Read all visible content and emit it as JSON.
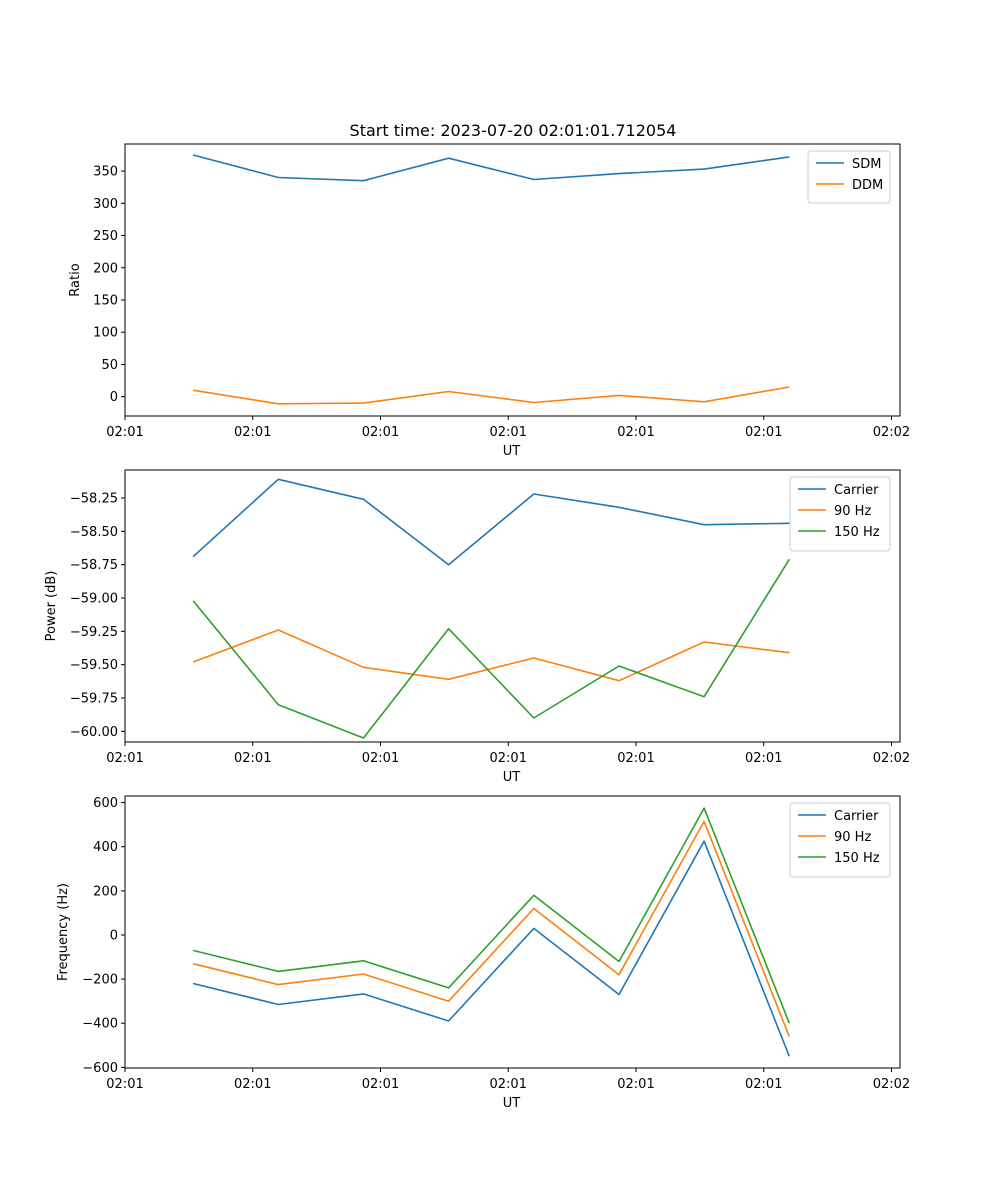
{
  "figure": {
    "title": "Start time: 2023-07-20 02:01:01.712054"
  },
  "chart_data": [
    {
      "type": "line",
      "title": "Start time: 2023-07-20 02:01:01.712054",
      "xlabel": "UT",
      "ylabel": "Ratio",
      "x": [
        1,
        2,
        3,
        4,
        5,
        6,
        7,
        8
      ],
      "xlim": [
        0.2,
        9.3
      ],
      "xticks": [
        0.2,
        1.7,
        3.2,
        4.7,
        6.2,
        7.7,
        9.2
      ],
      "xtick_labels": [
        "02:01",
        "02:01",
        "02:01",
        "02:01",
        "02:01",
        "02:01",
        "02:02"
      ],
      "ylim": [
        -30,
        392
      ],
      "yticks": [
        0,
        50,
        100,
        150,
        200,
        250,
        300,
        350
      ],
      "ytick_labels": [
        "0",
        "50",
        "100",
        "150",
        "200",
        "250",
        "300",
        "350"
      ],
      "legend_position": "top-right",
      "series": [
        {
          "name": "SDM",
          "color": "#1f77b4",
          "values": [
            375,
            340,
            335,
            370,
            337,
            346,
            353,
            372
          ]
        },
        {
          "name": "DDM",
          "color": "#ff7f0e",
          "values": [
            10,
            -11,
            -10,
            8,
            -9,
            2,
            -8,
            15
          ]
        }
      ]
    },
    {
      "type": "line",
      "title": "",
      "xlabel": "UT",
      "ylabel": "Power (dB)",
      "x": [
        1,
        2,
        3,
        4,
        5,
        6,
        7,
        8
      ],
      "xlim": [
        0.2,
        9.3
      ],
      "xticks": [
        0.2,
        1.7,
        3.2,
        4.7,
        6.2,
        7.7,
        9.2
      ],
      "xtick_labels": [
        "02:01",
        "02:01",
        "02:01",
        "02:01",
        "02:01",
        "02:01",
        "02:02"
      ],
      "ylim": [
        -60.08,
        -58.04
      ],
      "yticks": [
        -60.0,
        -59.75,
        -59.5,
        -59.25,
        -59.0,
        -58.75,
        -58.5,
        -58.25
      ],
      "ytick_labels": [
        "−60.00",
        "−59.75",
        "−59.50",
        "−59.25",
        "−59.00",
        "−58.75",
        "−58.50",
        "−58.25"
      ],
      "legend_position": "top-right",
      "series": [
        {
          "name": "Carrier",
          "color": "#1f77b4",
          "values": [
            -58.69,
            -58.11,
            -58.26,
            -58.75,
            -58.22,
            -58.32,
            -58.45,
            -58.44
          ]
        },
        {
          "name": "90 Hz",
          "color": "#ff7f0e",
          "values": [
            -59.48,
            -59.24,
            -59.52,
            -59.61,
            -59.45,
            -59.62,
            -59.33,
            -59.41
          ]
        },
        {
          "name": "150 Hz",
          "color": "#2ca02c",
          "values": [
            -59.02,
            -59.8,
            -60.05,
            -59.23,
            -59.9,
            -59.51,
            -59.74,
            -58.71
          ]
        }
      ]
    },
    {
      "type": "line",
      "title": "",
      "xlabel": "UT",
      "ylabel": "Frequency (Hz)",
      "x": [
        1,
        2,
        3,
        4,
        5,
        6,
        7,
        8
      ],
      "xlim": [
        0.2,
        9.3
      ],
      "xticks": [
        0.2,
        1.7,
        3.2,
        4.7,
        6.2,
        7.7,
        9.2
      ],
      "xtick_labels": [
        "02:01",
        "02:01",
        "02:01",
        "02:01",
        "02:01",
        "02:01",
        "02:02"
      ],
      "ylim": [
        -603,
        630
      ],
      "yticks": [
        -600,
        -400,
        -200,
        0,
        200,
        400,
        600
      ],
      "ytick_labels": [
        "−600",
        "−400",
        "−200",
        "0",
        "200",
        "400",
        "600"
      ],
      "legend_position": "top-right",
      "series": [
        {
          "name": "Carrier",
          "color": "#1f77b4",
          "values": [
            -220,
            -315,
            -267,
            -390,
            30,
            -270,
            425,
            -550
          ]
        },
        {
          "name": "90 Hz",
          "color": "#ff7f0e",
          "values": [
            -130,
            -225,
            -177,
            -300,
            120,
            -180,
            515,
            -460
          ]
        },
        {
          "name": "150 Hz",
          "color": "#2ca02c",
          "values": [
            -70,
            -165,
            -117,
            -240,
            180,
            -120,
            575,
            -400
          ]
        }
      ]
    }
  ]
}
